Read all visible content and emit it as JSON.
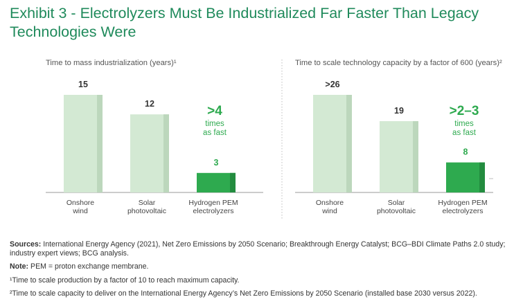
{
  "title": "Exhibit 3 - Electrolyzers Must Be Industrialized Far Faster Than Legacy Technologies Were",
  "colors": {
    "title": "#1f8a5b",
    "legacy_bar": "#d3e9d3",
    "legacy_bar_shade": "#bcd7bc",
    "hydrogen_bar": "#2eaa4f",
    "hydrogen_bar_shade": "#238c3f",
    "callout_text": "#2eaa4f",
    "axis": "#999999"
  },
  "chart_data": [
    {
      "type": "bar",
      "title": "Time to mass industrialization (years)¹",
      "categories": [
        [
          "Onshore",
          "wind"
        ],
        [
          "Solar",
          "photovoltaic"
        ],
        [
          "Hydrogen PEM",
          "electrolyzers"
        ]
      ],
      "values": [
        15,
        12,
        3
      ],
      "value_labels": [
        "15",
        "12",
        "3"
      ],
      "highlight_index": 2,
      "callout": {
        "big": ">4",
        "lines": [
          "times",
          "as fast"
        ]
      },
      "ylim": [
        0,
        16
      ],
      "grid": false
    },
    {
      "type": "bar",
      "title": "Time to scale technology capacity by a factor of 600 (years)²",
      "categories": [
        [
          "Onshore",
          "wind"
        ],
        [
          "Solar",
          "photovoltaic"
        ],
        [
          "Hydrogen PEM",
          "electrolyzers"
        ]
      ],
      "values": [
        26,
        19,
        8
      ],
      "value_labels": [
        ">26",
        "19",
        "8"
      ],
      "highlight_index": 2,
      "callout": {
        "big": ">2–3",
        "lines": [
          "times",
          "as fast"
        ]
      },
      "ylim": [
        0,
        28
      ],
      "grid": false
    }
  ],
  "footnotes": {
    "sources_label": "Sources:",
    "sources_text": " International Energy Agency (2021), Net Zero Emissions by 2050 Scenario; Breakthrough Energy Catalyst; BCG–BDI Climate Paths 2.0 study; industry expert views; BCG analysis.",
    "note_label": "Note:",
    "note_text": " PEM = proton exchange membrane.",
    "fn1": "¹Time to scale production by a factor of 10 to reach maximum capacity.",
    "fn2": "²Time to scale capacity to deliver on the International Energy Agency’s Net Zero Emissions by 2050 Scenario (installed base 2030 versus 2022)."
  }
}
